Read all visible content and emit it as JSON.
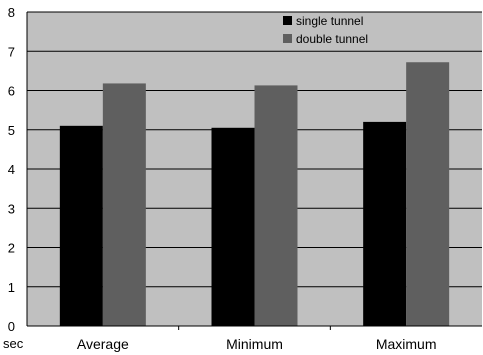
{
  "chart_data": {
    "type": "bar",
    "categories": [
      "Average",
      "Minimum",
      "Maximum"
    ],
    "series": [
      {
        "name": "single tunnel",
        "values": [
          5.1,
          5.05,
          5.2
        ],
        "color": "#000000"
      },
      {
        "name": "double tunnel",
        "values": [
          6.18,
          6.13,
          6.72
        ],
        "color": "#5f5f5f"
      }
    ],
    "ylabel": "sec",
    "ylim": [
      0,
      8
    ],
    "yticks": [
      0,
      1,
      2,
      3,
      4,
      5,
      6,
      7,
      8
    ],
    "grid": true,
    "legend": "top-right",
    "plot_background": "#c0c0c0"
  }
}
